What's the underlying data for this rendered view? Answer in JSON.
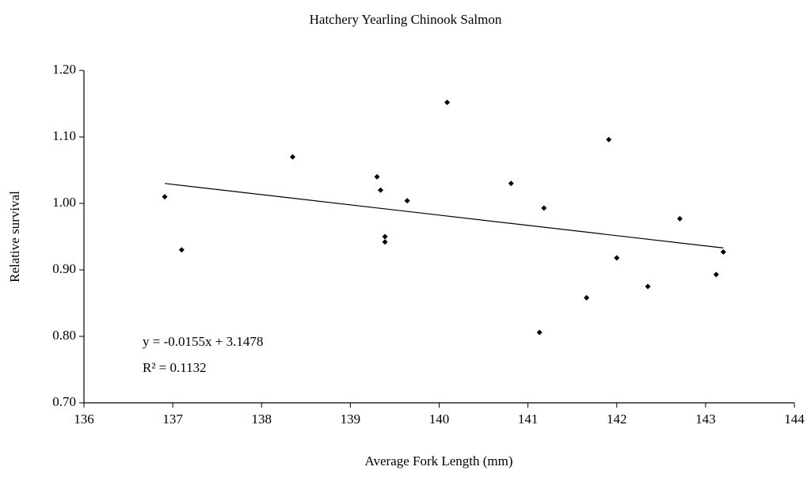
{
  "chart_data": {
    "type": "scatter",
    "title": "Hatchery Yearling Chinook Salmon",
    "x_label": "Average Fork Length (mm)",
    "y_label": "Relative survival",
    "annotations": [
      "y = -0.0155x + 3.1478",
      "R² = 0.1132"
    ],
    "x": [
      136.91,
      137.1,
      138.35,
      139.3,
      139.34,
      139.39,
      139.39,
      139.64,
      140.09,
      140.81,
      141.13,
      141.18,
      141.66,
      141.91,
      142.0,
      142.35,
      142.71,
      143.12,
      143.2
    ],
    "values": [
      1.01,
      0.93,
      1.07,
      1.04,
      1.02,
      0.95,
      0.942,
      1.004,
      1.152,
      1.03,
      0.806,
      0.993,
      0.858,
      1.096,
      0.918,
      0.875,
      0.977,
      0.893,
      0.927
    ],
    "color": "#000000",
    "trend_line": {
      "x": [
        136.91,
        143.2
      ],
      "values": [
        1.03,
        0.933
      ],
      "color": "#000000"
    },
    "xlim": [
      136,
      144
    ],
    "ylim": [
      0.7,
      1.2
    ],
    "xticks": [
      136,
      137,
      138,
      139,
      140,
      141,
      142,
      143,
      144
    ],
    "yticks": [
      {
        "value": 0.7,
        "label": "0.70"
      },
      {
        "value": 0.8,
        "label": "0.80"
      },
      {
        "value": 0.9,
        "label": "0.90"
      },
      {
        "value": 1.0,
        "label": "1.00"
      },
      {
        "value": 1.1,
        "label": "1.10"
      },
      {
        "value": 1.2,
        "label": "1.20"
      }
    ],
    "grid": false
  }
}
